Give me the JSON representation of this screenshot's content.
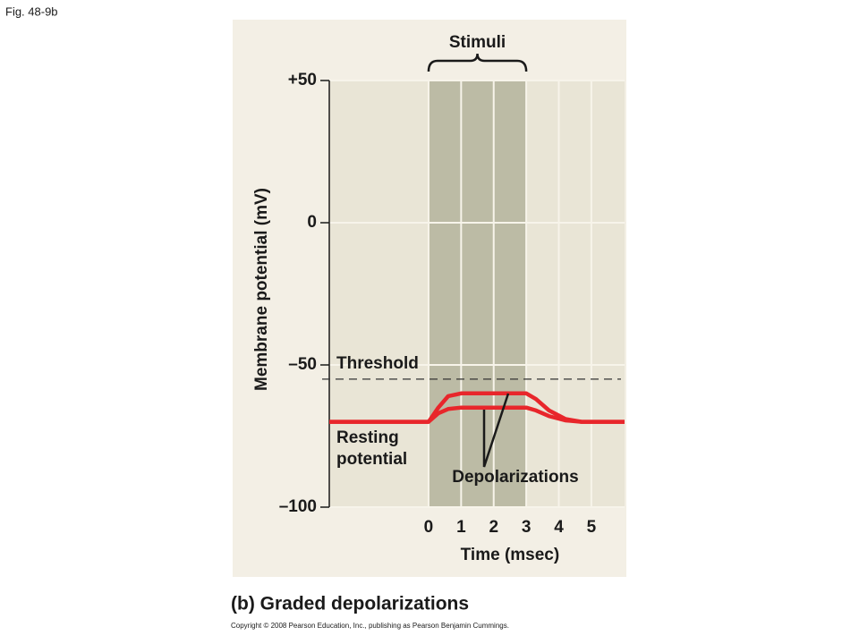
{
  "figure_label": "Fig. 48-9b",
  "caption": "(b) Graded depolarizations",
  "copyright": "Copyright © 2008 Pearson Education, Inc., publishing as Pearson Benjamin Cummings.",
  "chart_data": {
    "type": "line",
    "x_label": "Time (msec)",
    "y_label": "Membrane potential (mV)",
    "annotations": {
      "stimuli": "Stimuli",
      "threshold": "Threshold",
      "resting": [
        "Resting",
        "potential"
      ],
      "depolarizations": "Depolarizations"
    },
    "stimulus_range": [
      0,
      3
    ],
    "threshold": -55,
    "xlim": [
      -3.05,
      6.02
    ],
    "ylim": [
      -100,
      50
    ],
    "xticks": [
      0,
      1,
      2,
      3,
      4,
      5
    ],
    "yticks": [
      {
        "value": 50,
        "label": "+50"
      },
      0,
      {
        "value": -50,
        "label": "–50"
      },
      {
        "value": -100,
        "label": "–100"
      }
    ],
    "grid": true,
    "x": [
      -3.05,
      0,
      0.3,
      0.6,
      1,
      3,
      3.3,
      3.7,
      4.2,
      4.7,
      6.02
    ],
    "series": [
      {
        "color": "#e8262b",
        "values": [
          -70,
          -70,
          -65,
          -61,
          -60,
          -60,
          -62,
          -66,
          -69,
          -70,
          -70
        ]
      },
      {
        "color": "#e8262b",
        "values": [
          -70,
          -70,
          -67,
          -65.5,
          -65,
          -65,
          -66,
          -68,
          -69.5,
          -70,
          -70
        ]
      }
    ]
  }
}
